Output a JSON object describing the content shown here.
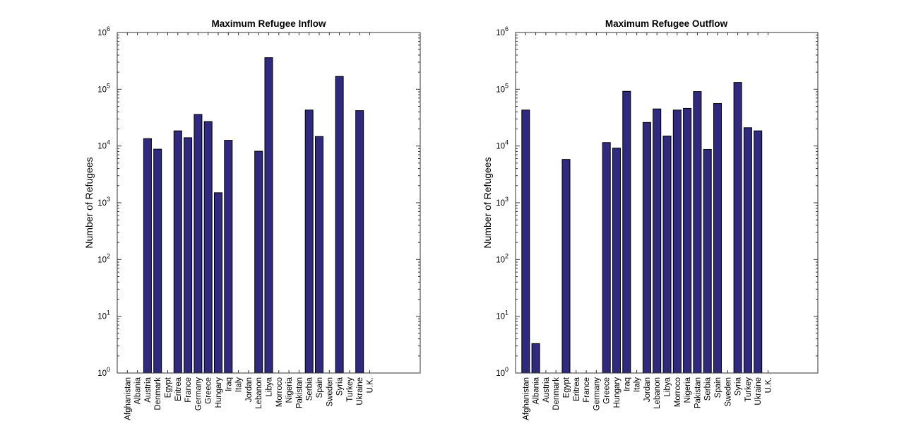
{
  "chart_data": [
    {
      "type": "bar",
      "title": "Maximum Refugee Inflow",
      "ylabel": "Number of Refugees",
      "yscale": "log",
      "ylim": [
        1,
        1000000
      ],
      "ytick_labels": [
        "1",
        "10",
        "100",
        "1000",
        "10000",
        "100000",
        "1000000"
      ],
      "categories": [
        "Afghanistan",
        "Albania",
        "Austria",
        "Denmark",
        "Egypt",
        "Eritrea",
        "France",
        "Germany",
        "Greece",
        "Hungary",
        "Iraq",
        "Italy",
        "Jordan",
        "Lebanon",
        "Libya",
        "Morroco",
        "Nigeria",
        "Pakistan",
        "Serbia",
        "Spain",
        "Sweden",
        "Syria",
        "Turkey",
        "Ukraine",
        "U.K."
      ],
      "values": [
        null,
        null,
        13500,
        8800,
        null,
        18500,
        14000,
        36000,
        27000,
        1500,
        12600,
        null,
        null,
        8100,
        360000,
        null,
        null,
        null,
        43000,
        14700,
        null,
        168000,
        null,
        42000,
        null
      ],
      "grid": false
    },
    {
      "type": "bar",
      "title": "Maximum Refugee Outflow",
      "ylabel": "Number of Refugees",
      "yscale": "log",
      "ylim": [
        1,
        1000000
      ],
      "ytick_labels": [
        "1",
        "10",
        "100",
        "1000",
        "10000",
        "100000",
        "1000000"
      ],
      "categories": [
        "Afghanistan",
        "Albania",
        "Austria",
        "Denmark",
        "Egypt",
        "Eritrea",
        "France",
        "Germany",
        "Greece",
        "Hungary",
        "Iraq",
        "Italy",
        "Jordan",
        "Lebanon",
        "Libya",
        "Morroco",
        "Nigeria",
        "Pakistan",
        "Serbia",
        "Spain",
        "Sweden",
        "Syria",
        "Turkey",
        "Ukraine",
        "U.K."
      ],
      "values": [
        43000,
        3.3,
        null,
        null,
        5800,
        null,
        null,
        null,
        11500,
        9200,
        92000,
        null,
        26000,
        45000,
        15000,
        43000,
        46000,
        91000,
        8700,
        56000,
        null,
        132000,
        21000,
        18500,
        null
      ],
      "grid": false
    }
  ]
}
